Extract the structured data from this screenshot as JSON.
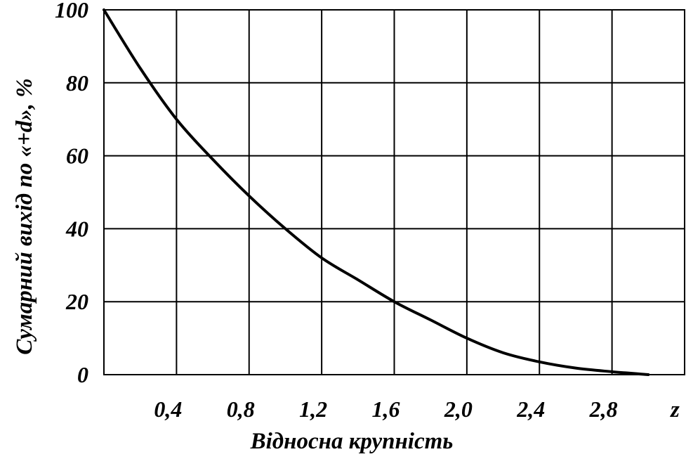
{
  "chart_data": {
    "type": "line",
    "title": "",
    "xlabel": "Відносна крупність",
    "ylabel": "Сумарний вихід по «+d», %",
    "x_axis_symbol": "z",
    "xlim": [
      0,
      3.2
    ],
    "ylim": [
      0,
      100
    ],
    "x_ticks": [
      0.4,
      0.8,
      1.2,
      1.6,
      2.0,
      2.4,
      2.8
    ],
    "x_tick_labels": [
      "0,4",
      "0,8",
      "1,2",
      "1,6",
      "2,0",
      "2,4",
      "2,8"
    ],
    "y_ticks": [
      0,
      20,
      40,
      60,
      80,
      100
    ],
    "y_tick_labels": [
      "0",
      "20",
      "40",
      "60",
      "80",
      "100"
    ],
    "grid": true,
    "series": [
      {
        "x": [
          0,
          0.2,
          0.4,
          0.6,
          0.8,
          1.0,
          1.2,
          1.4,
          1.6,
          1.8,
          2.0,
          2.2,
          2.4,
          2.6,
          2.8,
          3.0
        ],
        "y": [
          100,
          84,
          70,
          59,
          49,
          40,
          32,
          26,
          20,
          15,
          10,
          6,
          3.5,
          1.8,
          0.8,
          0
        ]
      }
    ]
  }
}
